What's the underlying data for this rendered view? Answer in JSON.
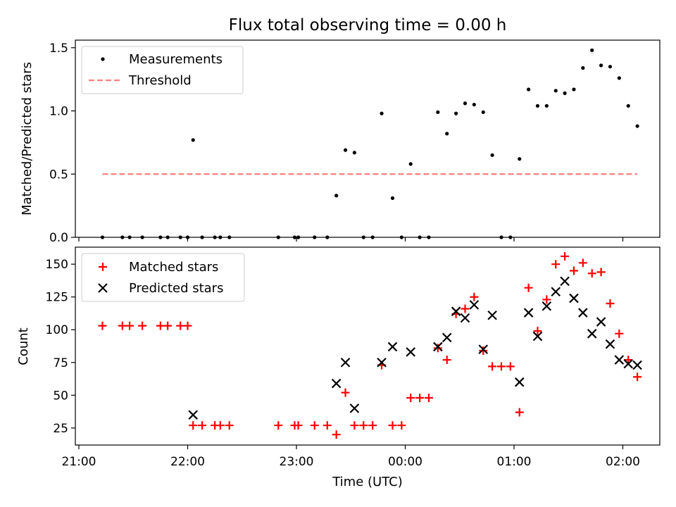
{
  "title": "Flux total observing time = 0.00 h",
  "xlabel": "Time (UTC)",
  "x_tick_labels": [
    "21:00",
    "22:00",
    "23:00",
    "00:00",
    "01:00",
    "02:00"
  ],
  "chart_data": [
    {
      "type": "scatter",
      "ylabel": "Matched/Predicted stars",
      "ylim": [
        0,
        1.56
      ],
      "y_ticks": [
        0.0,
        0.5,
        1.0,
        1.5
      ],
      "y_tick_labels": [
        "0.0",
        "0.5",
        "1.0",
        "1.5"
      ],
      "legend_position": "top-left",
      "series": [
        {
          "name": "Measurements",
          "color": "#000000",
          "marker": "dot",
          "points": [
            [
              "21:13",
              0.0
            ],
            [
              "21:24",
              0.0
            ],
            [
              "21:28",
              0.0
            ],
            [
              "21:35",
              0.0
            ],
            [
              "21:45",
              0.0
            ],
            [
              "21:49",
              0.0
            ],
            [
              "21:56",
              0.0
            ],
            [
              "22:00",
              0.0
            ],
            [
              "22:03",
              0.77
            ],
            [
              "22:08",
              0.0
            ],
            [
              "22:15",
              0.0
            ],
            [
              "22:18",
              0.0
            ],
            [
              "22:23",
              0.0
            ],
            [
              "22:50",
              0.0
            ],
            [
              "22:59",
              0.0
            ],
            [
              "23:01",
              0.0
            ],
            [
              "23:10",
              0.0
            ],
            [
              "23:17",
              0.0
            ],
            [
              "23:22",
              0.33
            ],
            [
              "23:27",
              0.69
            ],
            [
              "23:32",
              0.67
            ],
            [
              "23:37",
              0.0
            ],
            [
              "23:42",
              0.0
            ],
            [
              "23:47",
              0.98
            ],
            [
              "23:53",
              0.31
            ],
            [
              "23:58",
              0.0
            ],
            [
              "00:03",
              0.58
            ],
            [
              "00:08",
              0.0
            ],
            [
              "00:13",
              0.0
            ],
            [
              "00:18",
              0.99
            ],
            [
              "00:23",
              0.82
            ],
            [
              "00:28",
              0.98
            ],
            [
              "00:33",
              1.06
            ],
            [
              "00:38",
              1.05
            ],
            [
              "00:43",
              0.99
            ],
            [
              "00:48",
              0.65
            ],
            [
              "00:53",
              0.0
            ],
            [
              "00:58",
              0.0
            ],
            [
              "01:03",
              0.62
            ],
            [
              "01:08",
              1.17
            ],
            [
              "01:13",
              1.04
            ],
            [
              "01:18",
              1.04
            ],
            [
              "01:23",
              1.16
            ],
            [
              "01:28",
              1.14
            ],
            [
              "01:33",
              1.17
            ],
            [
              "01:38",
              1.34
            ],
            [
              "01:43",
              1.48
            ],
            [
              "01:48",
              1.36
            ],
            [
              "01:53",
              1.35
            ],
            [
              "01:58",
              1.26
            ],
            [
              "02:03",
              1.04
            ],
            [
              "02:08",
              0.88
            ]
          ]
        },
        {
          "name": "Threshold",
          "color": "#ff7f7f",
          "line": "dashed",
          "value": 0.5,
          "x_range": [
            "21:13",
            "02:08"
          ]
        }
      ]
    },
    {
      "type": "scatter",
      "ylabel": "Count",
      "ylim": [
        12,
        163
      ],
      "y_ticks": [
        25,
        50,
        75,
        100,
        125,
        150
      ],
      "y_tick_labels": [
        "25",
        "50",
        "75",
        "100",
        "125",
        "150"
      ],
      "legend_position": "top-left",
      "series": [
        {
          "name": "Matched stars",
          "color": "#ff0000",
          "marker": "plus",
          "points": [
            [
              "21:13",
              103
            ],
            [
              "21:24",
              103
            ],
            [
              "21:28",
              103
            ],
            [
              "21:35",
              103
            ],
            [
              "21:45",
              103
            ],
            [
              "21:49",
              103
            ],
            [
              "21:56",
              103
            ],
            [
              "22:00",
              103
            ],
            [
              "22:03",
              27
            ],
            [
              "22:08",
              27
            ],
            [
              "22:15",
              27
            ],
            [
              "22:18",
              27
            ],
            [
              "22:23",
              27
            ],
            [
              "22:50",
              27
            ],
            [
              "22:59",
              27
            ],
            [
              "23:01",
              27
            ],
            [
              "23:10",
              27
            ],
            [
              "23:17",
              27
            ],
            [
              "23:22",
              20
            ],
            [
              "23:27",
              52
            ],
            [
              "23:32",
              27
            ],
            [
              "23:37",
              27
            ],
            [
              "23:42",
              27
            ],
            [
              "23:47",
              73
            ],
            [
              "23:53",
              27
            ],
            [
              "23:58",
              27
            ],
            [
              "00:03",
              48
            ],
            [
              "00:08",
              48
            ],
            [
              "00:13",
              48
            ],
            [
              "00:18",
              86
            ],
            [
              "00:23",
              77
            ],
            [
              "00:28",
              112
            ],
            [
              "00:33",
              116
            ],
            [
              "00:38",
              125
            ],
            [
              "00:43",
              84
            ],
            [
              "00:48",
              72
            ],
            [
              "00:53",
              72
            ],
            [
              "00:58",
              72
            ],
            [
              "01:03",
              37
            ],
            [
              "01:08",
              132
            ],
            [
              "01:13",
              99
            ],
            [
              "01:18",
              123
            ],
            [
              "01:23",
              150
            ],
            [
              "01:28",
              156
            ],
            [
              "01:33",
              145
            ],
            [
              "01:38",
              151
            ],
            [
              "01:43",
              143
            ],
            [
              "01:48",
              144
            ],
            [
              "01:53",
              120
            ],
            [
              "01:58",
              97
            ],
            [
              "02:03",
              77
            ],
            [
              "02:08",
              64
            ]
          ]
        },
        {
          "name": "Predicted stars",
          "color": "#000000",
          "marker": "x",
          "points": [
            [
              "22:03",
              35
            ],
            [
              "23:22",
              59
            ],
            [
              "23:27",
              75
            ],
            [
              "23:32",
              40
            ],
            [
              "23:47",
              75
            ],
            [
              "23:53",
              87
            ],
            [
              "00:03",
              83
            ],
            [
              "00:18",
              87
            ],
            [
              "00:23",
              94
            ],
            [
              "00:28",
              114
            ],
            [
              "00:33",
              109
            ],
            [
              "00:38",
              119
            ],
            [
              "00:43",
              85
            ],
            [
              "00:48",
              111
            ],
            [
              "01:03",
              60
            ],
            [
              "01:08",
              113
            ],
            [
              "01:13",
              95
            ],
            [
              "01:18",
              118
            ],
            [
              "01:23",
              129
            ],
            [
              "01:28",
              137
            ],
            [
              "01:33",
              124
            ],
            [
              "01:38",
              113
            ],
            [
              "01:43",
              97
            ],
            [
              "01:48",
              106
            ],
            [
              "01:53",
              89
            ],
            [
              "01:58",
              77
            ],
            [
              "02:03",
              74
            ],
            [
              "02:08",
              73
            ]
          ]
        }
      ]
    }
  ]
}
